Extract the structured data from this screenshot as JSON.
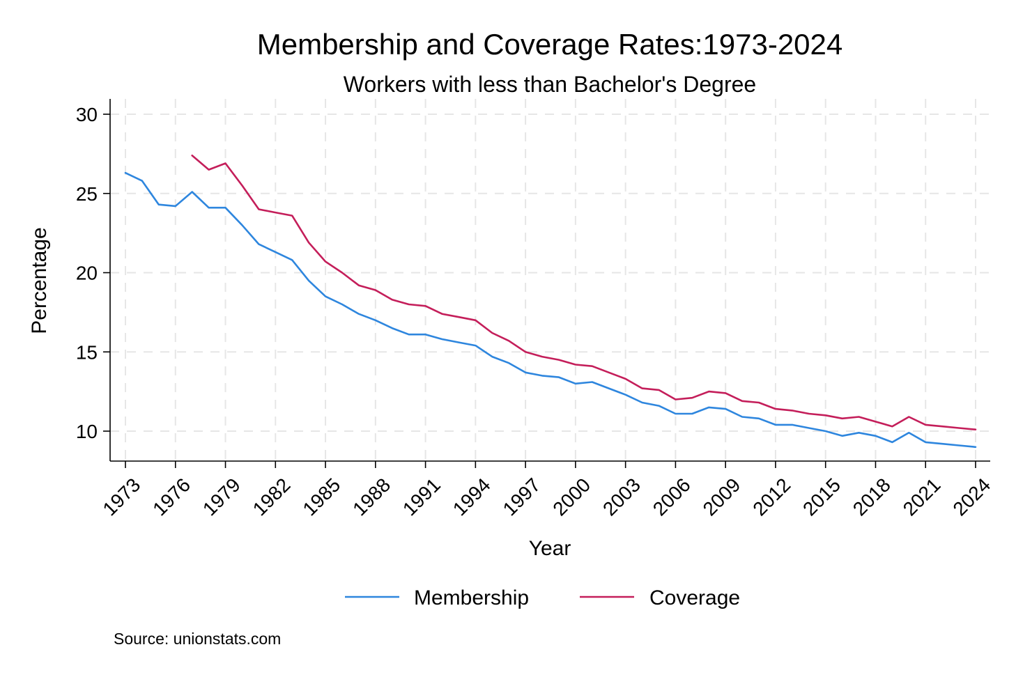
{
  "chart_data": {
    "type": "line",
    "title": "Membership and Coverage Rates:1973-2024",
    "subtitle": "Workers with less than Bachelor's Degree",
    "xlabel": "Year",
    "ylabel": "Percentage",
    "xlim": [
      1973,
      2024
    ],
    "ylim": [
      9,
      30.5
    ],
    "x_ticks": [
      1973,
      1976,
      1979,
      1982,
      1985,
      1988,
      1991,
      1994,
      1997,
      2000,
      2003,
      2006,
      2009,
      2012,
      2015,
      2018,
      2021,
      2024
    ],
    "y_ticks": [
      10,
      15,
      20,
      25,
      30
    ],
    "grid": true,
    "legend_position": "bottom",
    "source": "Source: unionstats.com",
    "series": [
      {
        "name": "Membership",
        "color": "#2e86de",
        "x": [
          1973,
          1974,
          1975,
          1976,
          1977,
          1978,
          1979,
          1980,
          1981,
          1982,
          1983,
          1984,
          1985,
          1986,
          1987,
          1988,
          1989,
          1990,
          1991,
          1992,
          1993,
          1994,
          1995,
          1996,
          1997,
          1998,
          1999,
          2000,
          2001,
          2002,
          2003,
          2004,
          2005,
          2006,
          2007,
          2008,
          2009,
          2010,
          2011,
          2012,
          2013,
          2014,
          2015,
          2016,
          2017,
          2018,
          2019,
          2020,
          2021,
          2022,
          2023,
          2024
        ],
        "values": [
          26.3,
          25.8,
          24.3,
          24.2,
          25.1,
          24.1,
          24.1,
          23.0,
          21.8,
          21.3,
          20.8,
          19.5,
          18.5,
          18.0,
          17.4,
          17.0,
          16.5,
          16.1,
          16.1,
          15.8,
          15.6,
          15.4,
          14.7,
          14.3,
          13.7,
          13.5,
          13.4,
          13.0,
          13.1,
          12.7,
          12.3,
          11.8,
          11.6,
          11.1,
          11.1,
          11.5,
          11.4,
          10.9,
          10.8,
          10.4,
          10.4,
          10.2,
          10.0,
          9.7,
          9.9,
          9.7,
          9.3,
          9.9,
          9.3,
          9.2,
          9.1,
          9.0
        ]
      },
      {
        "name": "Coverage",
        "color": "#c41e5a",
        "x": [
          1977,
          1978,
          1979,
          1980,
          1981,
          1982,
          1983,
          1984,
          1985,
          1986,
          1987,
          1988,
          1989,
          1990,
          1991,
          1992,
          1993,
          1994,
          1995,
          1996,
          1997,
          1998,
          1999,
          2000,
          2001,
          2002,
          2003,
          2004,
          2005,
          2006,
          2007,
          2008,
          2009,
          2010,
          2011,
          2012,
          2013,
          2014,
          2015,
          2016,
          2017,
          2018,
          2019,
          2020,
          2021,
          2022,
          2023,
          2024
        ],
        "values": [
          27.4,
          26.5,
          26.9,
          25.5,
          24.0,
          23.8,
          23.6,
          21.9,
          20.7,
          20.0,
          19.2,
          18.9,
          18.3,
          18.0,
          17.9,
          17.4,
          17.2,
          17.0,
          16.2,
          15.7,
          15.0,
          14.7,
          14.5,
          14.2,
          14.1,
          13.7,
          13.3,
          12.7,
          12.6,
          12.0,
          12.1,
          12.5,
          12.4,
          11.9,
          11.8,
          11.4,
          11.3,
          11.1,
          11.0,
          10.8,
          10.9,
          10.6,
          10.3,
          10.9,
          10.4,
          10.3,
          10.2,
          10.1
        ]
      }
    ]
  }
}
